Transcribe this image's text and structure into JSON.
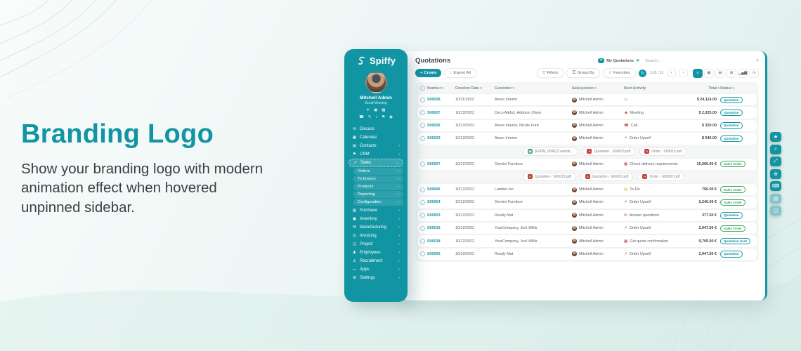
{
  "colors": {
    "accent": "#1295A2",
    "green": "#3AA55D",
    "red": "#C14437",
    "yellow": "#E3B341",
    "gray": "#9AA0A6"
  },
  "hero": {
    "title": "Branding Logo",
    "description": "Show your branding logo with modern animation effect when hovered unpinned sidebar."
  },
  "sidebar": {
    "brand": "Spiffy",
    "user": {
      "name": "Mitchell Admin",
      "greeting": "Good Morning"
    },
    "quick_icons_row1": [
      {
        "name": "plane-icon",
        "glyph": "✈"
      },
      {
        "name": "briefcase-icon",
        "glyph": "▣"
      },
      {
        "name": "grid-icon",
        "glyph": "▦"
      }
    ],
    "quick_icons_row2": [
      {
        "name": "car-icon",
        "glyph": "☎"
      },
      {
        "name": "palette-icon",
        "glyph": "✎"
      },
      {
        "name": "mute-icon",
        "glyph": "♪"
      },
      {
        "name": "lock-icon",
        "glyph": "⚑"
      },
      {
        "name": "location-icon",
        "glyph": "◉"
      }
    ],
    "items": [
      {
        "label": "Discuss",
        "icon": "discuss-icon",
        "glyph": "✉",
        "type": "top"
      },
      {
        "label": "Calendar",
        "icon": "calendar-icon",
        "glyph": "▦",
        "type": "top"
      },
      {
        "label": "Contacts",
        "icon": "contacts-icon",
        "glyph": "▤",
        "type": "top",
        "chevron": "›"
      },
      {
        "label": "CRM",
        "icon": "crm-icon",
        "glyph": "⚑",
        "type": "top",
        "chevron": "›"
      },
      {
        "label": "Sales",
        "icon": "sales-icon",
        "glyph": "↗",
        "type": "top",
        "chevron": "⌄",
        "active": true
      },
      {
        "label": "Orders",
        "type": "sub",
        "chevron": "›"
      },
      {
        "label": "To Invoice",
        "type": "sub",
        "chevron": "›"
      },
      {
        "label": "Products",
        "type": "sub",
        "chevron": "›"
      },
      {
        "label": "Reporting",
        "type": "sub",
        "chevron": "›"
      },
      {
        "label": "Configuration",
        "type": "sub",
        "chevron": "›"
      },
      {
        "label": "Purchase",
        "icon": "purchase-icon",
        "glyph": "▥",
        "type": "top",
        "chevron": "›"
      },
      {
        "label": "Inventory",
        "icon": "inventory-icon",
        "glyph": "▣",
        "type": "top",
        "chevron": "›"
      },
      {
        "label": "Manufacturing",
        "icon": "manufacturing-icon",
        "glyph": "⚒",
        "type": "top",
        "chevron": "›"
      },
      {
        "label": "Invoicing",
        "icon": "invoicing-icon",
        "glyph": "◫",
        "type": "top",
        "chevron": "›"
      },
      {
        "label": "Project",
        "icon": "project-icon",
        "glyph": "❏",
        "type": "top",
        "chevron": "›"
      },
      {
        "label": "Employees",
        "icon": "employees-icon",
        "glyph": "♟",
        "type": "top",
        "chevron": "›"
      },
      {
        "label": "Recruitment",
        "icon": "recruitment-icon",
        "glyph": "♙",
        "type": "top",
        "chevron": "›"
      },
      {
        "label": "Apps",
        "icon": "apps-icon",
        "glyph": "⚏",
        "type": "top",
        "chevron": "›"
      },
      {
        "label": "Settings",
        "icon": "settings-icon",
        "glyph": "⚙",
        "type": "top",
        "chevron": "›"
      }
    ]
  },
  "topbar": {
    "title": "Quotations",
    "filter_chip": "My Quotations",
    "search_placeholder": "Search...",
    "pagination": "1-11 / 11",
    "actions": {
      "create": "Create",
      "export": "Export All",
      "filters": "Filters",
      "group_by": "Group By",
      "favorites": "Favorites"
    },
    "views": [
      {
        "name": "list-view-button",
        "glyph": "≡",
        "active": true
      },
      {
        "name": "kanban-view-button",
        "glyph": "▦"
      },
      {
        "name": "calendar-view-button",
        "glyph": "▤"
      },
      {
        "name": "pivot-view-button",
        "glyph": "⊞"
      },
      {
        "name": "graph-view-button",
        "glyph": "▁▄▆"
      },
      {
        "name": "activity-view-button",
        "glyph": "◷"
      }
    ]
  },
  "right_toolbar": [
    {
      "name": "star-button",
      "glyph": "★"
    },
    {
      "name": "search-button",
      "glyph": "⌕"
    },
    {
      "name": "fullscreen-button",
      "glyph": "⤢"
    },
    {
      "name": "zoom-button",
      "glyph": "⊕"
    },
    {
      "name": "shortcuts-button",
      "glyph": "⌨"
    },
    {
      "name": "notes-button",
      "glyph": "▤",
      "lite": true
    },
    {
      "name": "chat-button",
      "glyph": "◫",
      "lite": true
    }
  ],
  "table": {
    "headers": [
      {
        "label": "Number",
        "sort": true
      },
      {
        "label": "Creation Date",
        "sort": true
      },
      {
        "label": "Customer",
        "sort": true
      },
      {
        "label": "Salesperson",
        "sort": true
      },
      {
        "label": "Next Activity",
        "sort": false
      },
      {
        "label": "Total",
        "sort": true
      },
      {
        "label": "Status",
        "sort": true
      }
    ],
    "rows": [
      {
        "number": "S00028",
        "date": "10/11/2022",
        "customer": "Azure Interior",
        "salesperson": "Mitchell Admin",
        "activity": {
          "label": "",
          "icon": "clock-icon",
          "glyph": "◷",
          "color": "#9AA0A6"
        },
        "total": "$ 24,114.00",
        "status": {
          "label": "Quotation",
          "variant": "quotation"
        }
      },
      {
        "number": "S00027",
        "date": "10/13/2022",
        "customer": "Deco Addict, Addison Olson",
        "salesperson": "Mitchell Admin",
        "activity": {
          "label": "Meeting",
          "icon": "meeting-icon",
          "glyph": "☻",
          "color": "#C14437"
        },
        "total": "$ 2,025.00",
        "status": {
          "label": "Quotation",
          "variant": "quotation"
        }
      },
      {
        "number": "S00026",
        "date": "10/13/2022",
        "customer": "Azure Interior, Nicole Ford",
        "salesperson": "Mitchell Admin",
        "activity": {
          "label": "Call",
          "icon": "phone-icon",
          "glyph": "☎",
          "color": "#C14437"
        },
        "total": "$ 320.00",
        "status": {
          "label": "Quotation",
          "variant": "quotation"
        }
      },
      {
        "number": "S00023",
        "date": "10/13/2022",
        "customer": "Azure Interior",
        "salesperson": "Mitchell Admin",
        "activity": {
          "label": "Order Upsell",
          "icon": "upsell-chart-icon",
          "glyph": "↗",
          "color": "#C14437"
        },
        "total": "$ 546.00",
        "status": {
          "label": "Quotation",
          "variant": "quotation"
        },
        "attachments": [
          {
            "kind": "image",
            "label": "[FURN_0096] Customi..."
          },
          {
            "kind": "pdf",
            "label": "Quotation - S00023.pdf"
          },
          {
            "kind": "pdf",
            "label": "Order - S00015.pdf"
          }
        ]
      },
      {
        "number": "S00007",
        "date": "10/12/2022",
        "customer": "Gemini Furniture",
        "salesperson": "Mitchell Admin",
        "activity": {
          "label": "Check delivery requirements",
          "icon": "calendar-icon",
          "glyph": "▦",
          "color": "#C14437"
        },
        "total": "15,060.00 €",
        "status": {
          "label": "Sales Order",
          "variant": "sales_order"
        },
        "attachments": [
          {
            "kind": "pdf",
            "label": "Quotation - S00023.pdf"
          },
          {
            "kind": "pdf",
            "label": "Quotation - S00010.pdf"
          },
          {
            "kind": "pdf",
            "label": "Order - S00007.pdf"
          }
        ]
      },
      {
        "number": "S00006",
        "date": "10/12/2022",
        "customer": "Lumber Inc",
        "salesperson": "Mitchell Admin",
        "activity": {
          "label": "To-Do",
          "icon": "todo-icon",
          "glyph": "▤",
          "color": "#E3B341"
        },
        "total": "750.00 €",
        "status": {
          "label": "Sales Order",
          "variant": "sales_order"
        }
      },
      {
        "number": "S00004",
        "date": "10/12/2022",
        "customer": "Gemini Furniture",
        "salesperson": "Mitchell Admin",
        "activity": {
          "label": "Order Upsell",
          "icon": "upsell-chart-icon",
          "glyph": "↗",
          "color": "#C14437"
        },
        "total": "2,240.00 €",
        "status": {
          "label": "Sales Order",
          "variant": "sales_order"
        }
      },
      {
        "number": "S00003",
        "date": "10/12/2022",
        "customer": "Ready Mat",
        "salesperson": "Mitchell Admin",
        "activity": {
          "label": "Answer questions",
          "icon": "mail-icon",
          "glyph": "✉",
          "color": "#C14437"
        },
        "total": "377.50 €",
        "status": {
          "label": "Quotation",
          "variant": "quotation"
        }
      },
      {
        "number": "S00019",
        "date": "10/12/2022",
        "customer": "YourCompany, Joel Willis",
        "salesperson": "Mitchell Admin",
        "activity": {
          "label": "Order Upsell",
          "icon": "upsell-chart-icon",
          "glyph": "↗",
          "color": "#C14437"
        },
        "total": "2,947.50 €",
        "status": {
          "label": "Sales Order",
          "variant": "sales_order"
        }
      },
      {
        "number": "S00018",
        "date": "10/12/2022",
        "customer": "YourCompany, Joel Willis",
        "salesperson": "Mitchell Admin",
        "activity": {
          "label": "Get quote confirmation",
          "icon": "calendar-icon",
          "glyph": "▦",
          "color": "#C14437"
        },
        "total": "9,705.00 €",
        "status": {
          "label": "Quotation Sent",
          "variant": "quotation_sent"
        }
      },
      {
        "number": "S00002",
        "date": "10/10/2022",
        "customer": "Ready Mat",
        "salesperson": "Mitchell Admin",
        "activity": {
          "label": "Order Upsell",
          "icon": "upsell-chart-icon",
          "glyph": "↗",
          "color": "#C14437"
        },
        "total": "2,947.50 €",
        "status": {
          "label": "Quotation",
          "variant": "quotation"
        }
      }
    ]
  }
}
